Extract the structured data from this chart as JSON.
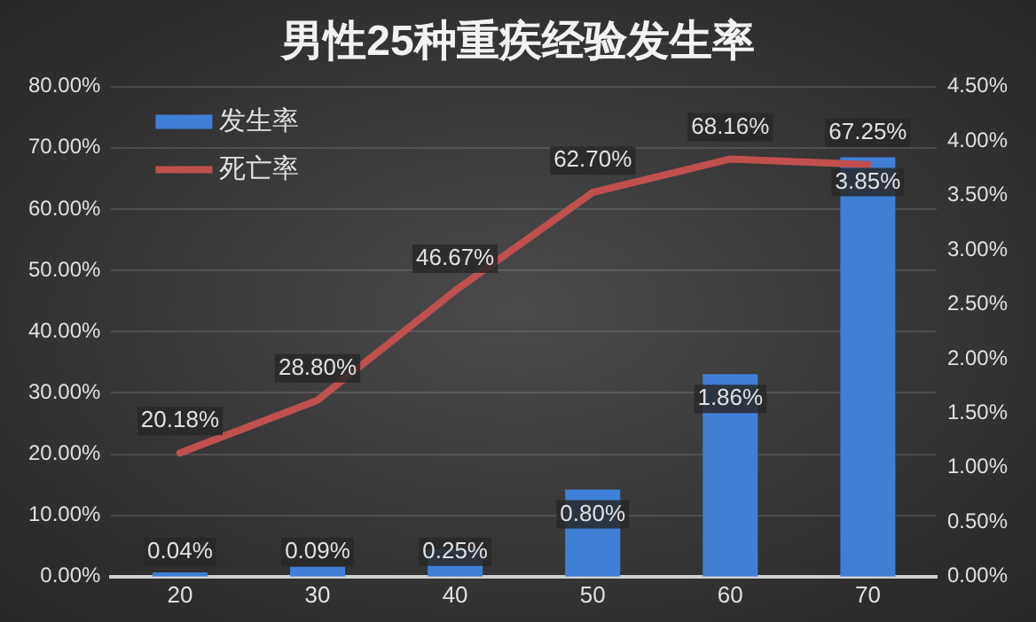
{
  "chart_data": {
    "type": "bar",
    "title": "男性25种重疾经验发生率",
    "categories": [
      "20",
      "30",
      "40",
      "50",
      "60",
      "70"
    ],
    "series": [
      {
        "name": "发生率",
        "axis": "y2",
        "color": "#3f7fd6",
        "values": [
          0.04,
          0.09,
          0.25,
          0.8,
          1.86,
          3.85
        ],
        "value_labels": [
          "0.04%",
          "0.09%",
          "0.25%",
          "0.80%",
          "1.86%",
          "3.85%"
        ]
      },
      {
        "name": "死亡率",
        "type": "line",
        "axis": "y",
        "color": "#c0504d",
        "values": [
          20.18,
          28.8,
          46.67,
          62.7,
          68.16,
          67.25
        ],
        "value_labels": [
          "20.18%",
          "28.80%",
          "46.67%",
          "62.70%",
          "68.16%",
          "67.25%"
        ]
      }
    ],
    "ylim": [
      0,
      80
    ],
    "yticks": [
      {
        "value": 0,
        "label": "0.00%"
      },
      {
        "value": 10,
        "label": "10.00%"
      },
      {
        "value": 20,
        "label": "20.00%"
      },
      {
        "value": 30,
        "label": "30.00%"
      },
      {
        "value": 40,
        "label": "40.00%"
      },
      {
        "value": 50,
        "label": "50.00%"
      },
      {
        "value": 60,
        "label": "60.00%"
      },
      {
        "value": 70,
        "label": "70.00%"
      },
      {
        "value": 80,
        "label": "80.00%"
      }
    ],
    "y2lim": [
      0,
      4.5
    ],
    "y2ticks": [
      {
        "value": 0,
        "label": "0.00%"
      },
      {
        "value": 0.5,
        "label": "0.50%"
      },
      {
        "value": 1,
        "label": "1.00%"
      },
      {
        "value": 1.5,
        "label": "1.50%"
      },
      {
        "value": 2,
        "label": "2.00%"
      },
      {
        "value": 2.5,
        "label": "2.50%"
      },
      {
        "value": 3,
        "label": "3.00%"
      },
      {
        "value": 3.5,
        "label": "3.50%"
      },
      {
        "value": 4,
        "label": "4.00%"
      },
      {
        "value": 4.5,
        "label": "4.50%"
      }
    ],
    "grid": "y",
    "legend": "top left",
    "marker": "none",
    "line_style": "solid"
  }
}
